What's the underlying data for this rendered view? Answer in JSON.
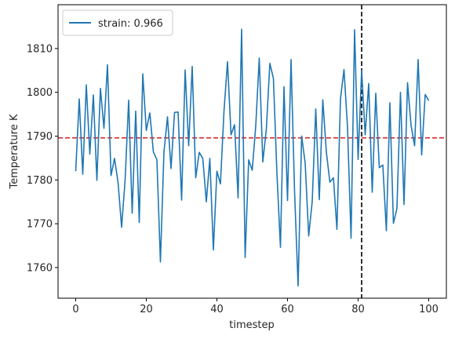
{
  "chart_data": {
    "type": "line",
    "title": "",
    "xlabel": "timestep",
    "ylabel": "Temperature K",
    "xlim": [
      -5,
      105
    ],
    "ylim": [
      1753,
      1820
    ],
    "xticks": [
      0,
      20,
      40,
      60,
      80,
      100
    ],
    "yticks": [
      1760,
      1770,
      1780,
      1790,
      1800,
      1810
    ],
    "grid": false,
    "legend_position": "upper-left",
    "series": [
      {
        "name": "strain: 0.966",
        "color": "#1f77b4",
        "x": [
          0,
          1,
          2,
          3,
          4,
          5,
          6,
          7,
          8,
          9,
          10,
          11,
          12,
          13,
          14,
          15,
          16,
          17,
          18,
          19,
          20,
          21,
          22,
          23,
          24,
          25,
          26,
          27,
          28,
          29,
          30,
          31,
          32,
          33,
          34,
          35,
          36,
          37,
          38,
          39,
          40,
          41,
          42,
          43,
          44,
          45,
          46,
          47,
          48,
          49,
          50,
          51,
          52,
          53,
          54,
          55,
          56,
          57,
          58,
          59,
          60,
          61,
          62,
          63,
          64,
          65,
          66,
          67,
          68,
          69,
          70,
          71,
          72,
          73,
          74,
          75,
          76,
          77,
          78,
          79,
          80,
          81,
          82,
          83,
          84,
          85,
          86,
          87,
          88,
          89,
          90,
          91,
          92,
          93,
          94,
          95,
          96,
          97,
          98,
          99,
          100
        ],
        "y": [
          1782,
          1798.5,
          1781.3,
          1801.7,
          1785.9,
          1799.4,
          1779.9,
          1800.9,
          1791.8,
          1806.3,
          1781,
          1784.9,
          1779.4,
          1769.2,
          1780,
          1798.2,
          1772.4,
          1795.7,
          1770.3,
          1804.2,
          1791.3,
          1795.3,
          1786.4,
          1784.6,
          1761.3,
          1786.4,
          1794.4,
          1782.6,
          1795.4,
          1795.5,
          1775.4,
          1805.1,
          1787.8,
          1805.9,
          1780.5,
          1786.3,
          1784.9,
          1775,
          1784.9,
          1764,
          1782,
          1779.1,
          1795.6,
          1807,
          1790.3,
          1792.6,
          1775.9,
          1814.4,
          1762.3,
          1784.6,
          1782.2,
          1792.3,
          1807.8,
          1784.1,
          1791.6,
          1806.6,
          1803.2,
          1781.5,
          1764.6,
          1801.3,
          1775.3,
          1807.5,
          1777.3,
          1755.8,
          1790,
          1783.9,
          1767.2,
          1775.1,
          1796.2,
          1775.5,
          1798.3,
          1786.4,
          1779.5,
          1780.5,
          1768.7,
          1798.5,
          1805.2,
          1792,
          1766.7,
          1814.3,
          1784.7,
          1805,
          1790.3,
          1802,
          1777.2,
          1799.8,
          1782.8,
          1783.4,
          1768.4,
          1797.6,
          1770.1,
          1773.5,
          1800,
          1774.4,
          1802.2,
          1792.4,
          1787.8,
          1807.5,
          1785.7,
          1799.5,
          1798.1
        ]
      }
    ],
    "annotations": [
      {
        "kind": "hline",
        "y": 1789.6,
        "color": "#d62728",
        "style": "dashed"
      },
      {
        "kind": "vline",
        "x": 81,
        "color": "#000000",
        "style": "dashed"
      }
    ]
  }
}
